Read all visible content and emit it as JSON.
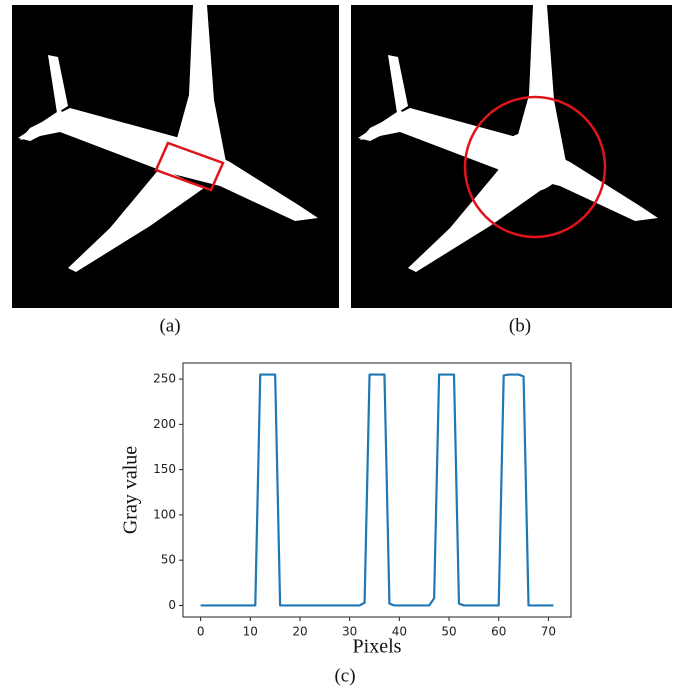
{
  "captions": [
    "(a)",
    "(b)",
    "(c)"
  ],
  "chart_data": {
    "type": "line",
    "x": [
      0,
      1,
      2,
      3,
      4,
      5,
      6,
      7,
      8,
      9,
      10,
      11,
      12,
      13,
      14,
      15,
      16,
      17,
      18,
      19,
      20,
      21,
      22,
      23,
      24,
      25,
      26,
      27,
      28,
      29,
      30,
      31,
      32,
      33,
      34,
      35,
      36,
      37,
      38,
      39,
      40,
      41,
      42,
      43,
      44,
      45,
      46,
      47,
      48,
      49,
      50,
      51,
      52,
      53,
      54,
      55,
      56,
      57,
      58,
      59,
      60,
      61,
      62,
      63,
      64,
      65,
      66,
      67,
      68,
      69,
      70,
      71
    ],
    "values": [
      0,
      0,
      0,
      0,
      0,
      0,
      0,
      0,
      0,
      0,
      0,
      0,
      255,
      255,
      255,
      255,
      0,
      0,
      0,
      0,
      0,
      0,
      0,
      0,
      0,
      0,
      0,
      0,
      0,
      0,
      0,
      0,
      0,
      3,
      255,
      255,
      255,
      255,
      2,
      0,
      0,
      0,
      0,
      0,
      0,
      0,
      0,
      8,
      255,
      255,
      255,
      255,
      2,
      0,
      0,
      0,
      0,
      0,
      0,
      0,
      0,
      254,
      255,
      255,
      255,
      253,
      0,
      0,
      0,
      0,
      0,
      0
    ],
    "color": "#1f77b4",
    "xlabel": "Pixels",
    "ylabel": "Gray value",
    "xlim": [
      -3.55,
      74.55
    ],
    "ylim": [
      -12.75,
      267.75
    ],
    "xticks": [
      0,
      10,
      20,
      30,
      40,
      50,
      60,
      70
    ],
    "yticks": [
      0,
      50,
      100,
      150,
      200,
      250
    ]
  }
}
